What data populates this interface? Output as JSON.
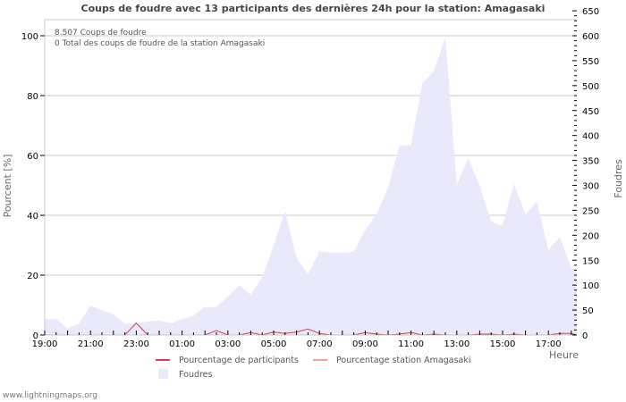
{
  "title": "Coups de foudre avec 13 participants des dernières 24h pour la station: Amagasaki",
  "info": {
    "line1": "8.507  Coups de foudre",
    "line2": "0 Total des coups de foudre de la station Amagasaki"
  },
  "axes": {
    "y_left_label": "Pourcent   [%]",
    "y_right_label": "Foudres",
    "x_label": "Heure"
  },
  "legend": {
    "participants": "Pourcentage de participants",
    "station": "Pourcentage station Amagasaki",
    "foudres": "Foudres"
  },
  "footer": "www.lightningmaps.org",
  "colors": {
    "area_fill": "#e9e9fb",
    "participants_line": "#d0405a",
    "station_line": "#f0a0a0",
    "grid": "#c8c8c8"
  },
  "chart_data": {
    "type": "area",
    "title": "Coups de foudre avec 13 participants des dernières 24h pour la station: Amagasaki",
    "xlabel": "Heure",
    "ylabel": "Pourcent [%]",
    "ylabel_right": "Foudres",
    "x_ticks": [
      "19:00",
      "21:00",
      "23:00",
      "01:00",
      "03:00",
      "05:00",
      "07:00",
      "09:00",
      "11:00",
      "13:00",
      "15:00",
      "17:00"
    ],
    "y_left_ticks": [
      0,
      20,
      40,
      60,
      80,
      100
    ],
    "y_right_ticks": [
      0,
      50,
      100,
      150,
      200,
      250,
      300,
      350,
      400,
      450,
      500,
      550,
      600,
      650
    ],
    "ylim_left": [
      0,
      100
    ],
    "ylim_right": [
      0,
      650
    ],
    "grid": true,
    "legend_position": "bottom",
    "x": [
      "19:00",
      "19:30",
      "20:00",
      "20:30",
      "21:00",
      "21:30",
      "22:00",
      "22:30",
      "23:00",
      "23:30",
      "00:00",
      "00:30",
      "01:00",
      "01:30",
      "02:00",
      "02:30",
      "03:00",
      "03:30",
      "04:00",
      "04:30",
      "05:00",
      "05:30",
      "06:00",
      "06:30",
      "07:00",
      "07:30",
      "08:00",
      "08:30",
      "09:00",
      "09:30",
      "10:00",
      "10:30",
      "11:00",
      "11:30",
      "12:00",
      "12:30",
      "13:00",
      "13:30",
      "14:00",
      "14:30",
      "15:00",
      "15:30",
      "16:00",
      "16:30",
      "17:00",
      "17:30",
      "18:00",
      "18:15"
    ],
    "series": [
      {
        "name": "Foudres",
        "axis": "right",
        "values": [
          32,
          32,
          13,
          23,
          59,
          50,
          41,
          23,
          23,
          27,
          29,
          23,
          32,
          39,
          56,
          56,
          77,
          99,
          81,
          115,
          179,
          249,
          154,
          122,
          168,
          165,
          165,
          167,
          210,
          242,
          296,
          380,
          380,
          505,
          529,
          597,
          301,
          355,
          299,
          228,
          219,
          303,
          242,
          267,
          170,
          197,
          134,
          131
        ]
      },
      {
        "name": "Pourcentage de participants",
        "axis": "left",
        "values": [
          0,
          0,
          0,
          0,
          0,
          0,
          0,
          0,
          4,
          0,
          0,
          0,
          0,
          0,
          0,
          1.5,
          0,
          0,
          0.8,
          0,
          1,
          0.5,
          1,
          2,
          0.5,
          0,
          0,
          0,
          0.8,
          0.3,
          0,
          0.3,
          0.8,
          0,
          0.3,
          0,
          0,
          0,
          0.3,
          0.3,
          0,
          0.3,
          0,
          0,
          0,
          0.5,
          0.5,
          0
        ]
      },
      {
        "name": "Pourcentage station Amagasaki",
        "axis": "left",
        "values": [
          0,
          0,
          0,
          0,
          0,
          0,
          0,
          0,
          0,
          0,
          0,
          0,
          0,
          0,
          0,
          0,
          0,
          0,
          0,
          0,
          0,
          0,
          0,
          0,
          0,
          0,
          0,
          0,
          0,
          0,
          0,
          0,
          0,
          0,
          0,
          0,
          0,
          0,
          0,
          0,
          0,
          0,
          0,
          0,
          0,
          0,
          0,
          0
        ]
      }
    ]
  }
}
